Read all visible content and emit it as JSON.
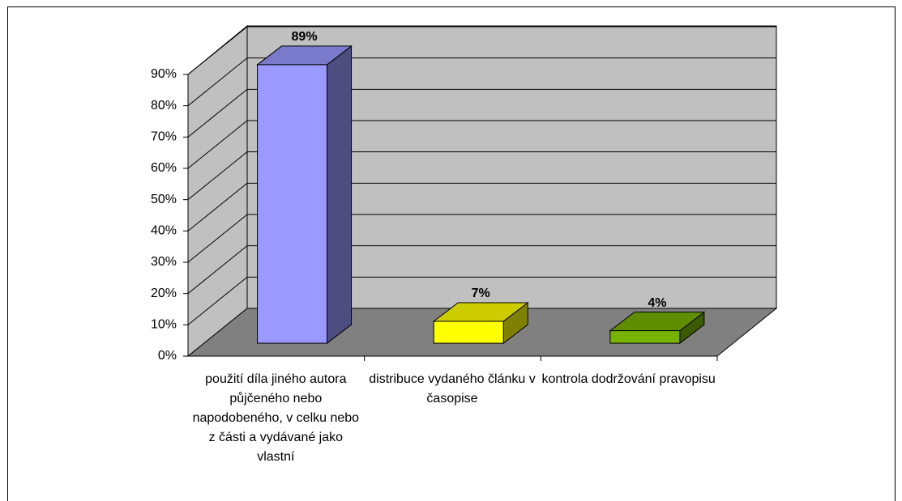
{
  "chart_data": {
    "type": "bar3d",
    "categories": [
      "použití díla jiného autora půjčeného nebo napodobeného, v celku nebo z části a vydávané jako vlastní",
      "distribuce vydaného článku v časopise",
      "kontrola dodržování pravopisu"
    ],
    "values": [
      89,
      7,
      4
    ],
    "value_labels": [
      "89%",
      "7%",
      "4%"
    ],
    "colors": [
      "#9999ff",
      "#ffff00",
      "#77b300"
    ],
    "ylim": [
      0,
      90
    ],
    "yticks": [
      {
        "value": 0,
        "label": "0%"
      },
      {
        "value": 10,
        "label": "10%"
      },
      {
        "value": 20,
        "label": "20%"
      },
      {
        "value": 30,
        "label": "30%"
      },
      {
        "value": 40,
        "label": "40%"
      },
      {
        "value": 50,
        "label": "50%"
      },
      {
        "value": 60,
        "label": "60%"
      },
      {
        "value": 70,
        "label": "70%"
      },
      {
        "value": 80,
        "label": "80%"
      },
      {
        "value": 90,
        "label": "90%"
      }
    ],
    "grid": true
  }
}
